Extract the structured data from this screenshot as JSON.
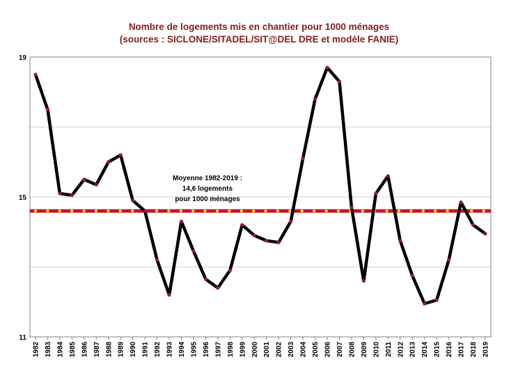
{
  "chart_data": {
    "type": "line",
    "title": "Nombre de logements mis en chantier pour 1000 ménages",
    "subtitle": "(sources : SICLONE/SITADEL/SIT@DEL DRE et modèle FANIE)",
    "xlabel": "",
    "ylabel": "",
    "ylim": [
      11,
      19
    ],
    "yticks": [
      "11",
      "15",
      "19"
    ],
    "grid": true,
    "categories": [
      "1982",
      "1983",
      "1984",
      "1985",
      "1986",
      "1987",
      "1988",
      "1989",
      "1990",
      "1991",
      "1992",
      "1993",
      "1994",
      "1995",
      "1996",
      "1997",
      "1998",
      "1999",
      "2000",
      "2001",
      "2002",
      "2003",
      "2004",
      "2005",
      "2006",
      "2007",
      "2008",
      "2009",
      "2010",
      "2011",
      "2012",
      "2013",
      "2014",
      "2015",
      "2016",
      "2017",
      "2018",
      "2019"
    ],
    "series": [
      {
        "values": [
          18.5,
          17.5,
          15.1,
          15.05,
          15.5,
          15.35,
          16.0,
          16.2,
          14.9,
          14.6,
          13.2,
          12.2,
          14.3,
          13.45,
          12.65,
          12.4,
          12.9,
          14.2,
          13.9,
          13.75,
          13.7,
          14.3,
          16.1,
          17.8,
          18.7,
          18.3,
          14.7,
          12.6,
          15.1,
          15.6,
          13.75,
          12.75,
          11.95,
          12.05,
          13.2,
          14.85,
          14.2,
          13.95
        ],
        "color": "#000000",
        "marker_color": "#a0144a"
      }
    ],
    "reference_line": {
      "value": 14.6,
      "color": "#c8102e",
      "dot_color": "#f2f20a",
      "label_lines": [
        "Moyenne 1982-2019 :",
        "14,6 logements",
        "pour 1000  ménages"
      ]
    }
  }
}
